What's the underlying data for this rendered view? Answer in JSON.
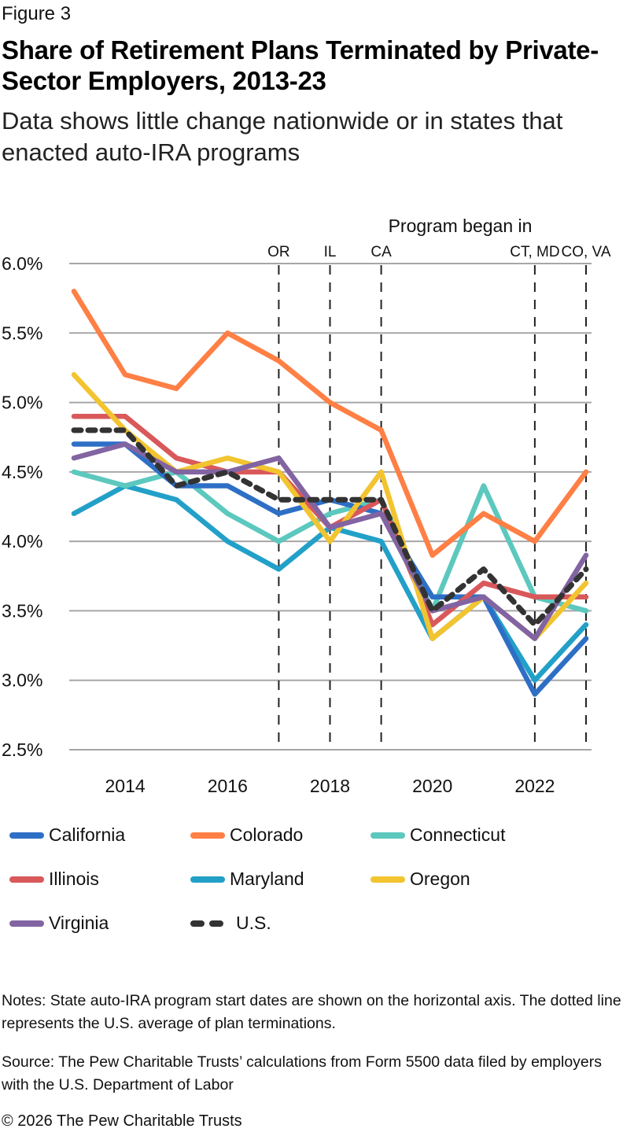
{
  "figure_label": "Figure 3",
  "title": "Share of Retirement Plans Terminated by Private-Sector Employers, 2013-23",
  "subtitle": "Data shows little change nationwide or in states that enacted auto-IRA programs",
  "notes": "Notes: State auto-IRA program start dates are shown on the horizontal axis. The dotted line represents the U.S. average of plan terminations.",
  "source": "Source: The Pew Charitable Trusts’ calculations from Form 5500 data filed by employers with the U.S. Department of Labor",
  "copyright": "© 2026 The Pew Charitable Trusts",
  "chart_data": {
    "type": "line",
    "title": "Share of Retirement Plans Terminated by Private-Sector Employers, 2013-23",
    "xlabel": "",
    "ylabel": "",
    "x": [
      2013,
      2014,
      2015,
      2016,
      2017,
      2018,
      2019,
      2020,
      2021,
      2022,
      2023
    ],
    "x_tick_labels": [
      "2014",
      "2016",
      "2018",
      "2020",
      "2022"
    ],
    "x_ticks": [
      2014,
      2016,
      2018,
      2020,
      2022
    ],
    "y_tick_labels": [
      "6.0%",
      "5.5%",
      "5.0%",
      "4.5%",
      "4.0%",
      "3.5%",
      "3.0%",
      "2.5%"
    ],
    "y_ticks": [
      6.0,
      5.5,
      5.0,
      4.5,
      4.0,
      3.5,
      3.0,
      2.5
    ],
    "ylim": [
      2.5,
      6.0
    ],
    "grid": "horizontal",
    "legend_position": "bottom",
    "annotation_header": "Program began in",
    "program_markers": [
      {
        "year": 2017,
        "label": "OR"
      },
      {
        "year": 2018,
        "label": "IL"
      },
      {
        "year": 2019,
        "label": "CA"
      },
      {
        "year": 2022,
        "label": "CT, MD"
      },
      {
        "year": 2023,
        "label": "CO, VA"
      }
    ],
    "series": [
      {
        "name": "California",
        "color": "#2E6FC6",
        "dashed": false,
        "values": [
          4.7,
          4.7,
          4.4,
          4.4,
          4.2,
          4.3,
          4.2,
          3.6,
          3.6,
          2.9,
          3.3
        ]
      },
      {
        "name": "Colorado",
        "color": "#FF7F45",
        "dashed": false,
        "values": [
          5.8,
          5.2,
          5.1,
          5.5,
          5.3,
          5.0,
          4.8,
          3.9,
          4.2,
          4.0,
          4.5
        ]
      },
      {
        "name": "Connecticut",
        "color": "#5CC8BE",
        "dashed": false,
        "values": [
          4.5,
          4.4,
          4.5,
          4.2,
          4.0,
          4.2,
          4.3,
          3.5,
          4.4,
          3.6,
          3.5
        ]
      },
      {
        "name": "Illinois",
        "color": "#D9595B",
        "dashed": false,
        "values": [
          4.9,
          4.9,
          4.6,
          4.5,
          4.5,
          4.1,
          4.3,
          3.4,
          3.7,
          3.6,
          3.6
        ]
      },
      {
        "name": "Maryland",
        "color": "#22A0C8",
        "dashed": false,
        "values": [
          4.2,
          4.4,
          4.3,
          4.0,
          3.8,
          4.1,
          4.0,
          3.3,
          3.6,
          3.0,
          3.4
        ]
      },
      {
        "name": "Oregon",
        "color": "#F2C430",
        "dashed": false,
        "values": [
          5.2,
          4.8,
          4.5,
          4.6,
          4.5,
          4.0,
          4.5,
          3.3,
          3.6,
          3.3,
          3.7
        ]
      },
      {
        "name": "Virginia",
        "color": "#8264A2",
        "dashed": false,
        "values": [
          4.6,
          4.7,
          4.5,
          4.5,
          4.6,
          4.1,
          4.2,
          3.5,
          3.6,
          3.3,
          3.9
        ]
      },
      {
        "name": "U.S.",
        "color": "#333333",
        "dashed": true,
        "values": [
          4.8,
          4.8,
          4.4,
          4.5,
          4.3,
          4.3,
          4.3,
          3.5,
          3.8,
          3.4,
          3.8
        ]
      }
    ]
  }
}
